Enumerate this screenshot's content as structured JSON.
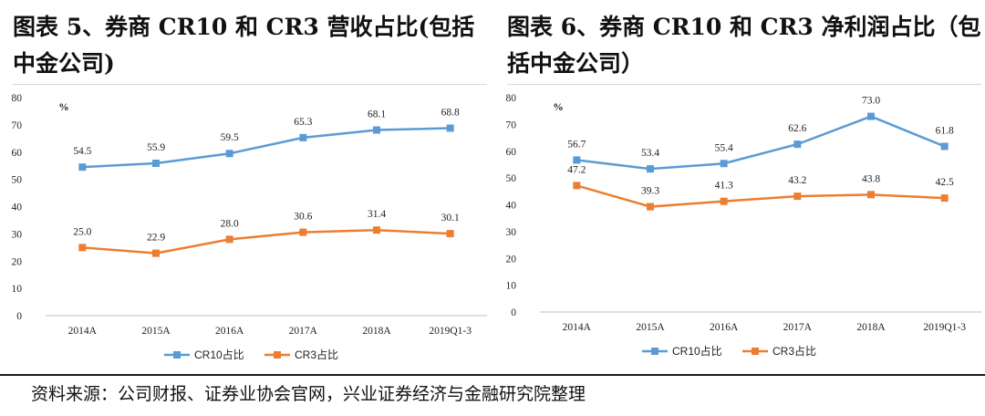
{
  "titles": {
    "left": "图表 5、券商 CR10 和 CR3 营收占比(包括中金公司)",
    "right": "图表 6、券商 CR10 和 CR3 净利润占比（包括中金公司）"
  },
  "footer": "资料来源：公司财报、证券业协会官网，兴业证券经济与金融研究院整理",
  "chart_data": [
    {
      "type": "line",
      "unit": "%",
      "categories": [
        "2014A",
        "2015A",
        "2016A",
        "2017A",
        "2018A",
        "2019Q1-3"
      ],
      "ylim": [
        0,
        80
      ],
      "yticks": [
        0,
        10,
        20,
        30,
        40,
        50,
        60,
        70,
        80
      ],
      "grid": false,
      "legend": "bottom",
      "series": [
        {
          "name": "CR10占比",
          "color": "#5b9bd5",
          "values": [
            54.5,
            55.9,
            59.5,
            65.3,
            68.1,
            68.8
          ]
        },
        {
          "name": "CR3占比",
          "color": "#ed7d31",
          "values": [
            25.0,
            22.9,
            28.0,
            30.6,
            31.4,
            30.1
          ]
        }
      ]
    },
    {
      "type": "line",
      "unit": "%",
      "categories": [
        "2014A",
        "2015A",
        "2016A",
        "2017A",
        "2018A",
        "2019Q1-3"
      ],
      "ylim": [
        0,
        80
      ],
      "yticks": [
        0,
        10,
        20,
        30,
        40,
        50,
        60,
        70,
        80
      ],
      "grid": false,
      "legend": "bottom",
      "series": [
        {
          "name": "CR10占比",
          "color": "#5b9bd5",
          "values": [
            56.7,
            53.4,
            55.4,
            62.6,
            73.0,
            61.8
          ]
        },
        {
          "name": "CR3占比",
          "color": "#ed7d31",
          "values": [
            47.2,
            39.3,
            41.3,
            43.2,
            43.8,
            42.5
          ]
        }
      ]
    }
  ]
}
